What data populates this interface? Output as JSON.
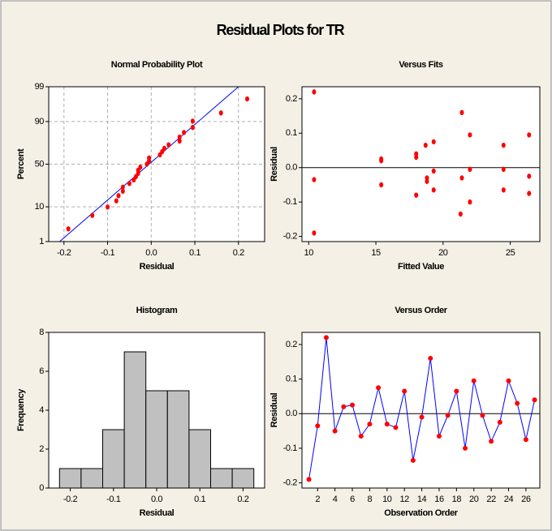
{
  "title": "Residual Plots for TR",
  "chart_data": [
    {
      "type": "probability",
      "title": "Normal Probability Plot",
      "xlabel": "Residual",
      "ylabel": "Percent",
      "x": [
        -0.19,
        -0.135,
        -0.1,
        -0.08,
        -0.075,
        -0.065,
        -0.065,
        -0.05,
        -0.04,
        -0.035,
        -0.03,
        -0.03,
        -0.025,
        -0.01,
        -0.005,
        -0.005,
        0.02,
        0.025,
        0.03,
        0.04,
        0.065,
        0.065,
        0.075,
        0.095,
        0.095,
        0.16,
        0.22
      ],
      "values": [
        2.6,
        6.2,
        9.9,
        13.5,
        17.2,
        20.8,
        24.5,
        28.1,
        31.8,
        35.4,
        39.1,
        42.7,
        46.4,
        50.0,
        53.7,
        57.3,
        61.0,
        64.6,
        68.3,
        71.9,
        75.6,
        79.2,
        82.9,
        86.5,
        90.2,
        93.8,
        97.5
      ],
      "color": "#ff0000",
      "fit_line": {
        "x": [
          -0.21,
          0.2
        ],
        "values": [
          1,
          99
        ],
        "color": "#0000ff"
      },
      "xlim": [
        -0.235,
        0.26
      ],
      "ylim": [
        1,
        99
      ],
      "y_scale": "normal",
      "xticks": [
        -0.2,
        -0.1,
        {
          "value": 0,
          "label": "0.0"
        },
        0.1,
        0.2
      ],
      "yticks": [
        1,
        10,
        50,
        90,
        99
      ],
      "grid": true
    },
    {
      "type": "scatter",
      "title": "Versus Fits",
      "xlabel": "Fitted Value",
      "ylabel": "Residual",
      "x": [
        10.4,
        10.4,
        10.4,
        15.4,
        15.4,
        15.4,
        19.3,
        18.8,
        19.3,
        21.4,
        18.8,
        18.7,
        21.3,
        19.3,
        21.4,
        24.5,
        22.0,
        24.5,
        22.0,
        22.0,
        24.5,
        18.0,
        26.4,
        26.4,
        18.0,
        26.4,
        18.0
      ],
      "values": [
        -0.19,
        -0.035,
        0.22,
        -0.05,
        0.02,
        0.025,
        -0.065,
        -0.03,
        0.075,
        -0.03,
        -0.04,
        0.065,
        -0.135,
        -0.01,
        0.16,
        -0.065,
        -0.005,
        0.065,
        -0.1,
        0.095,
        -0.005,
        -0.08,
        -0.025,
        0.095,
        0.03,
        -0.075,
        0.04
      ],
      "color": "#ff0000",
      "xlim": [
        9.5,
        27.2
      ],
      "ylim": [
        -0.215,
        0.235
      ],
      "xticks": [
        10,
        15,
        20,
        25
      ],
      "yticks": [
        -0.2,
        -0.1,
        {
          "value": 0,
          "label": "0.0"
        },
        0.1,
        0.2
      ],
      "reference_y": 0
    },
    {
      "type": "histogram",
      "title": "Histogram",
      "xlabel": "Residual",
      "ylabel": "Frequency",
      "bins": [
        -0.225,
        -0.175,
        -0.125,
        -0.075,
        -0.025,
        0.025,
        0.075,
        0.125,
        0.175,
        0.225
      ],
      "values": [
        1,
        1,
        3,
        7,
        5,
        5,
        3,
        1,
        1
      ],
      "color": "#c0c0c0",
      "xlim": [
        -0.25,
        0.25
      ],
      "ylim": [
        0,
        8
      ],
      "xticks": [
        -0.2,
        -0.1,
        {
          "value": 0,
          "label": "0.0"
        },
        0.1,
        0.2
      ],
      "yticks": [
        0,
        2,
        4,
        6,
        8
      ]
    },
    {
      "type": "line",
      "title": "Versus Order",
      "xlabel": "Observation Order",
      "ylabel": "Residual",
      "x": [
        1,
        2,
        3,
        4,
        5,
        6,
        7,
        8,
        9,
        10,
        11,
        12,
        13,
        14,
        15,
        16,
        17,
        18,
        19,
        20,
        21,
        22,
        23,
        24,
        25,
        26,
        27
      ],
      "values": [
        -0.19,
        -0.035,
        0.22,
        -0.05,
        0.02,
        0.025,
        -0.065,
        -0.03,
        0.075,
        -0.03,
        -0.04,
        0.065,
        -0.135,
        -0.01,
        0.16,
        -0.065,
        -0.005,
        0.065,
        -0.1,
        0.095,
        -0.005,
        -0.08,
        -0.025,
        0.095,
        0.03,
        -0.075,
        0.04
      ],
      "color": "#0000ff",
      "marker_color": "#ff0000",
      "xlim": [
        0.2,
        27.6
      ],
      "ylim": [
        -0.215,
        0.235
      ],
      "xticks": [
        2,
        4,
        6,
        8,
        10,
        12,
        14,
        16,
        18,
        20,
        22,
        24,
        26
      ],
      "yticks": [
        -0.2,
        -0.1,
        {
          "value": 0,
          "label": "0.0"
        },
        0.1,
        0.2
      ],
      "reference_y": 0
    }
  ]
}
